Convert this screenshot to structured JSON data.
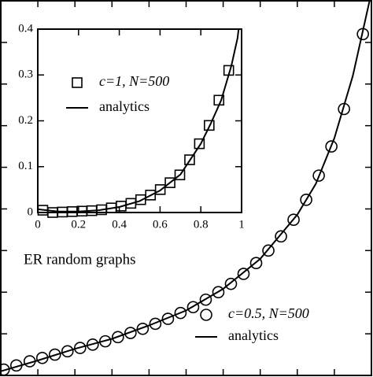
{
  "chart_data": [
    {
      "type": "line",
      "annotation": "ER random graphs",
      "xlim": [
        0,
        1
      ],
      "ylim": [
        0,
        0.45
      ],
      "xticks": [
        0.1,
        0.2,
        0.3,
        0.4,
        0.5,
        0.6,
        0.7,
        0.8,
        0.9
      ],
      "yticks": [
        0.05,
        0.1,
        0.15,
        0.2,
        0.25,
        0.3,
        0.35,
        0.4
      ],
      "legend": "lower right",
      "series": [
        {
          "name": "c=0.5, N=500",
          "color": "#000000",
          "marker": "circle",
          "linestyle": "none",
          "x": [
            0.008,
            0.042,
            0.078,
            0.112,
            0.146,
            0.18,
            0.214,
            0.248,
            0.282,
            0.316,
            0.35,
            0.383,
            0.417,
            0.451,
            0.485,
            0.519,
            0.553,
            0.587,
            0.621,
            0.655,
            0.689,
            0.722,
            0.756,
            0.79,
            0.824,
            0.858,
            0.892,
            0.926,
            0.977
          ],
          "values": [
            0.007,
            0.012,
            0.017,
            0.021,
            0.025,
            0.029,
            0.033,
            0.037,
            0.041,
            0.046,
            0.051,
            0.056,
            0.062,
            0.068,
            0.075,
            0.082,
            0.091,
            0.1,
            0.11,
            0.122,
            0.135,
            0.15,
            0.167,
            0.187,
            0.211,
            0.24,
            0.275,
            0.32,
            0.41
          ]
        },
        {
          "name": "analytics",
          "color": "#000000",
          "marker": "none",
          "linestyle": "solid",
          "x": [
            0,
            0.1,
            0.2,
            0.3,
            0.4,
            0.5,
            0.6,
            0.7,
            0.8,
            0.85,
            0.9,
            0.95,
            1.0
          ],
          "values": [
            0.005,
            0.018,
            0.032,
            0.044,
            0.06,
            0.078,
            0.104,
            0.14,
            0.193,
            0.23,
            0.285,
            0.36,
            0.46
          ]
        }
      ]
    },
    {
      "type": "line",
      "xlim": [
        0,
        1
      ],
      "ylim": [
        0,
        0.4
      ],
      "xticks": [
        0,
        0.2,
        0.4,
        0.6,
        0.8,
        1
      ],
      "yticks": [
        0,
        0.1,
        0.2,
        0.3,
        0.4
      ],
      "legend": "upper left",
      "series": [
        {
          "name": "c=1, N=500",
          "color": "#000000",
          "marker": "square",
          "linestyle": "none",
          "x": [
            0.025,
            0.073,
            0.121,
            0.169,
            0.217,
            0.265,
            0.313,
            0.361,
            0.409,
            0.457,
            0.505,
            0.553,
            0.601,
            0.649,
            0.697,
            0.745,
            0.793,
            0.841,
            0.889,
            0.937
          ],
          "values": [
            0.005,
            0.0,
            0.001,
            0.002,
            0.003,
            0.004,
            0.006,
            0.01,
            0.014,
            0.02,
            0.028,
            0.038,
            0.05,
            0.065,
            0.082,
            0.115,
            0.15,
            0.19,
            0.245,
            0.31
          ]
        },
        {
          "name": "analytics",
          "color": "#000000",
          "marker": "none",
          "linestyle": "solid",
          "x": [
            0,
            0.1,
            0.2,
            0.3,
            0.4,
            0.5,
            0.6,
            0.7,
            0.8,
            0.85,
            0.9,
            0.95,
            0.98,
            1.0
          ],
          "values": [
            0.007,
            0.002,
            0.002,
            0.005,
            0.012,
            0.025,
            0.048,
            0.083,
            0.15,
            0.195,
            0.245,
            0.32,
            0.38,
            0.45
          ]
        }
      ]
    }
  ]
}
